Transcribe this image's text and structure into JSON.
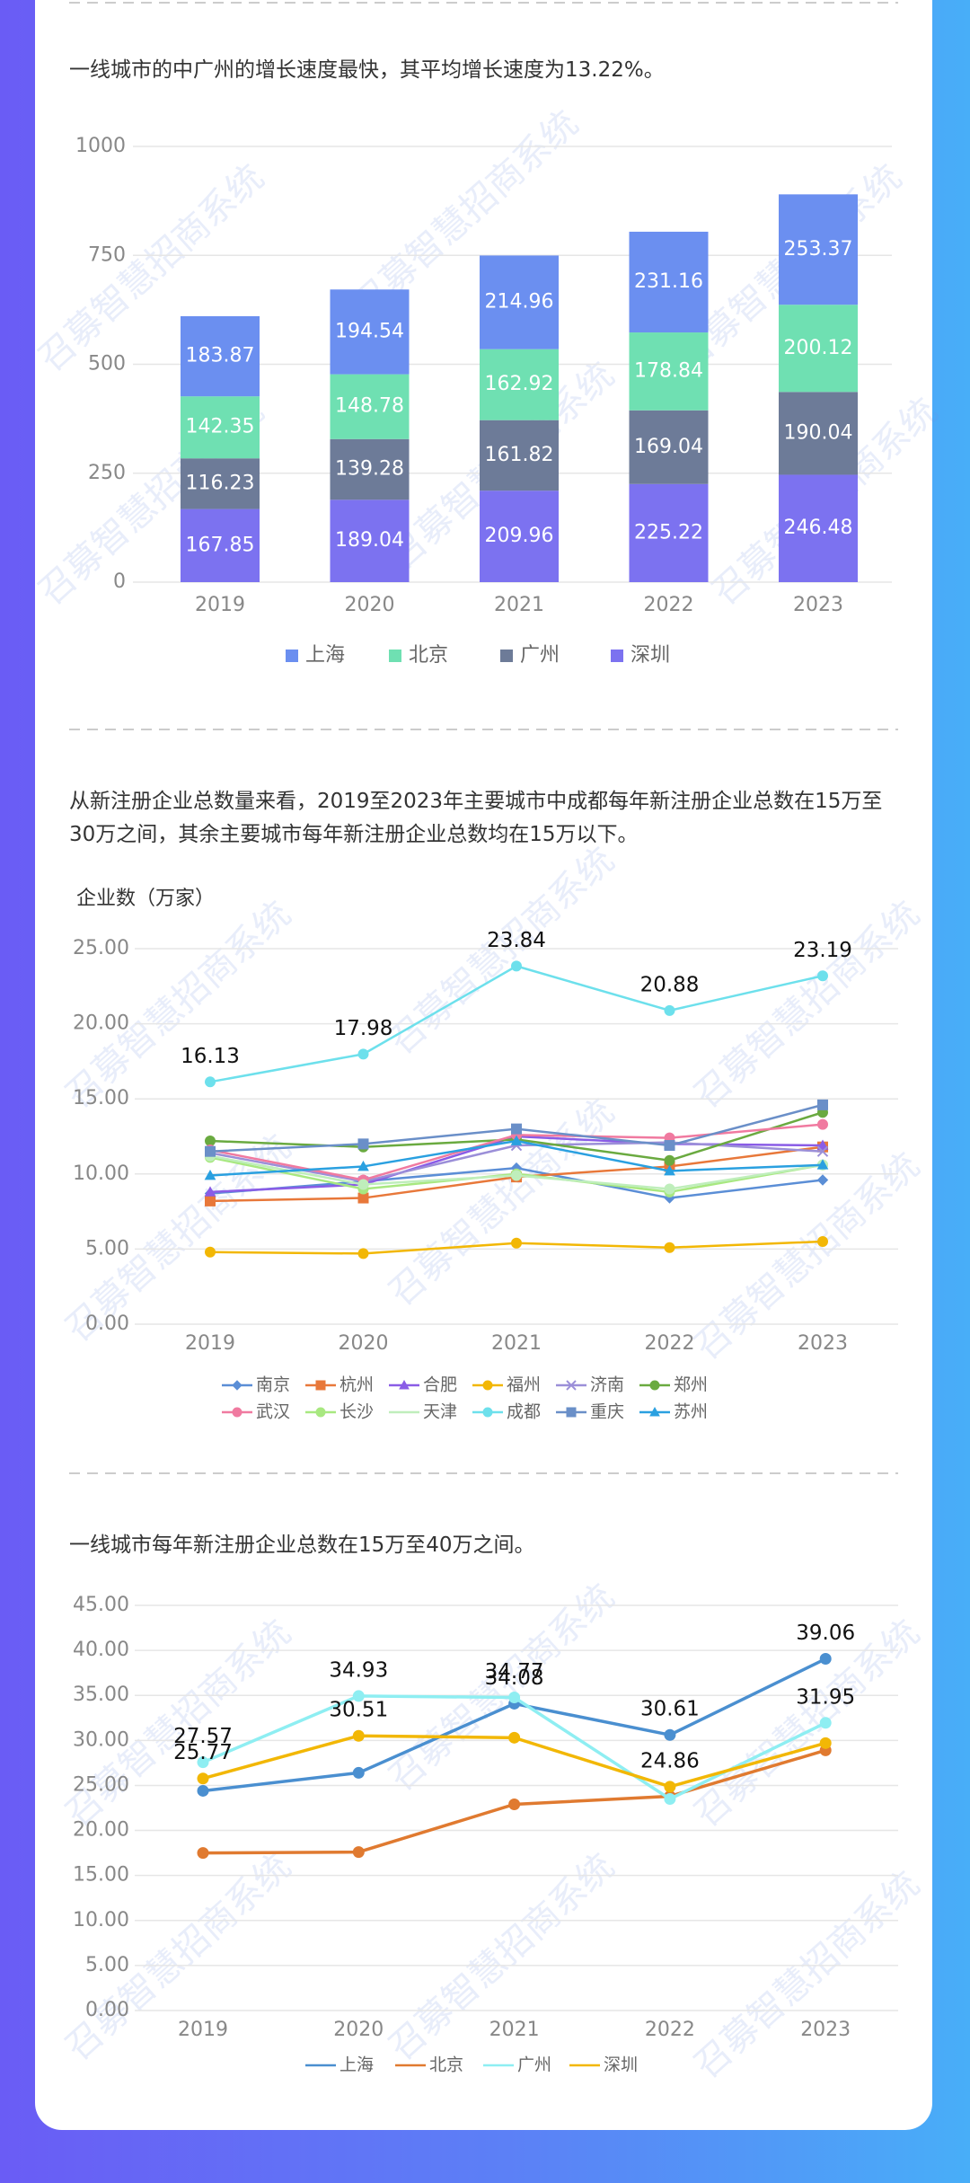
{
  "watermark": "召募智慧招商系统",
  "texts": [
    "一线城市的中广州的增长速度最快，其平均增长速度为13.22%。",
    "从新注册企业总数量来看，2019至2023年主要城市中成都每年新注册企业总数在15万至30万之间，其余主要城市每年新注册企业总数均在15万以下。",
    "一线城市每年新注册企业总数在15万至40万之间。"
  ],
  "chart_data": [
    {
      "type": "bar",
      "stacked": true,
      "grid": true,
      "categories": [
        "2019",
        "2020",
        "2021",
        "2022",
        "2023"
      ],
      "ylim": [
        0,
        1000
      ],
      "yticks": [
        0,
        250,
        500,
        750,
        1000
      ],
      "series": [
        {
          "name": "上海",
          "color": "#6b8ff0",
          "values": [
            183.87,
            194.54,
            214.96,
            231.16,
            253.37
          ]
        },
        {
          "name": "北京",
          "color": "#6fe0b2",
          "values": [
            142.35,
            148.78,
            162.92,
            178.84,
            200.12
          ]
        },
        {
          "name": "广州",
          "color": "#6d7b98",
          "values": [
            116.23,
            139.28,
            161.82,
            169.04,
            190.04
          ]
        },
        {
          "name": "深圳",
          "color": "#7c72f0",
          "values": [
            167.85,
            189.04,
            209.96,
            225.22,
            246.48
          ]
        }
      ]
    },
    {
      "type": "line",
      "grid": true,
      "ylabel": "企业数（万家）",
      "categories": [
        "2019",
        "2020",
        "2021",
        "2022",
        "2023"
      ],
      "ylim": [
        0,
        25
      ],
      "yticks": [
        {
          "value": 0,
          "label": "0.00"
        },
        {
          "value": 5,
          "label": "5.00"
        },
        {
          "value": 10,
          "label": "10.00"
        },
        {
          "value": 15,
          "label": "15.00"
        },
        {
          "value": 20,
          "label": "20.00"
        },
        {
          "value": 25,
          "label": "25.00"
        }
      ],
      "series": [
        {
          "name": "南京",
          "color": "#5b8ed6",
          "marker": "diamond",
          "values": [
            8.7,
            9.5,
            10.4,
            8.4,
            9.6
          ]
        },
        {
          "name": "杭州",
          "color": "#e8783a",
          "marker": "square",
          "values": [
            8.2,
            8.4,
            9.8,
            10.5,
            11.8
          ]
        },
        {
          "name": "合肥",
          "color": "#8a5ce6",
          "marker": "triangle",
          "values": [
            8.8,
            9.3,
            12.5,
            12.0,
            11.9
          ]
        },
        {
          "name": "福州",
          "color": "#f2b705",
          "marker": "circle",
          "values": [
            4.8,
            4.7,
            5.4,
            5.1,
            5.5
          ]
        },
        {
          "name": "济南",
          "color": "#9b8fd8",
          "marker": "x",
          "values": [
            11.4,
            9.5,
            11.9,
            12.1,
            11.5
          ]
        },
        {
          "name": "郑州",
          "color": "#6aaa40",
          "marker": "circle",
          "values": [
            12.2,
            11.8,
            12.3,
            10.9,
            14.1
          ]
        },
        {
          "name": "武汉",
          "color": "#f07aa0",
          "marker": "circle",
          "values": [
            11.6,
            9.6,
            12.6,
            12.4,
            13.3
          ]
        },
        {
          "name": "长沙",
          "color": "#a8e880",
          "marker": "circle",
          "values": [
            11.1,
            9.0,
            10.0,
            8.8,
            10.6
          ]
        },
        {
          "name": "天津",
          "color": "#bfeebb",
          "marker": "none",
          "values": [
            11.2,
            9.3,
            9.9,
            9.0,
            10.6
          ]
        },
        {
          "name": "成都",
          "color": "#6de0ec",
          "marker": "circle",
          "values": [
            16.13,
            17.98,
            23.84,
            20.88,
            23.19
          ],
          "value_labels": [
            "16.13",
            "17.98",
            "23.84",
            "20.88",
            "23.19"
          ]
        },
        {
          "name": "重庆",
          "color": "#6a8fc8",
          "marker": "square",
          "values": [
            11.5,
            12.0,
            13.0,
            11.9,
            14.6
          ]
        },
        {
          "name": "苏州",
          "color": "#2aa0e0",
          "marker": "triangle",
          "values": [
            9.9,
            10.5,
            12.2,
            10.2,
            10.6
          ]
        }
      ]
    },
    {
      "type": "line",
      "grid": true,
      "legend_style": "line",
      "categories": [
        "2019",
        "2020",
        "2021",
        "2022",
        "2023"
      ],
      "ylim": [
        0,
        45
      ],
      "yticks": [
        {
          "value": 0,
          "label": "0.00"
        },
        {
          "value": 5,
          "label": "5.00"
        },
        {
          "value": 10,
          "label": "10.00"
        },
        {
          "value": 15,
          "label": "15.00"
        },
        {
          "value": 20,
          "label": "20.00"
        },
        {
          "value": 25,
          "label": "25.00"
        },
        {
          "value": 30,
          "label": "30.00"
        },
        {
          "value": 35,
          "label": "35.00"
        },
        {
          "value": 40,
          "label": "40.00"
        },
        {
          "value": 45,
          "label": "45.00"
        }
      ],
      "series": [
        {
          "name": "上海",
          "color": "#4a8fd0",
          "marker": "circle",
          "values": [
            24.4,
            26.4,
            34.08,
            30.61,
            39.06
          ],
          "value_labels": [
            null,
            null,
            "34.08",
            "30.61",
            "39.06"
          ]
        },
        {
          "name": "北京",
          "color": "#e07a30",
          "marker": "circle",
          "values": [
            17.5,
            17.6,
            22.9,
            23.8,
            28.9
          ]
        },
        {
          "name": "广州",
          "color": "#8eeef2",
          "marker": "circle",
          "values": [
            27.57,
            34.93,
            34.77,
            23.5,
            31.95
          ],
          "value_labels": [
            "27.57",
            "34.93",
            "34.77",
            null,
            "31.95"
          ]
        },
        {
          "name": "深圳",
          "color": "#f2b705",
          "marker": "circle",
          "values": [
            25.77,
            30.51,
            30.3,
            24.86,
            29.7
          ],
          "value_labels": [
            "25.77",
            "30.51",
            null,
            "24.86",
            null
          ]
        }
      ]
    }
  ]
}
